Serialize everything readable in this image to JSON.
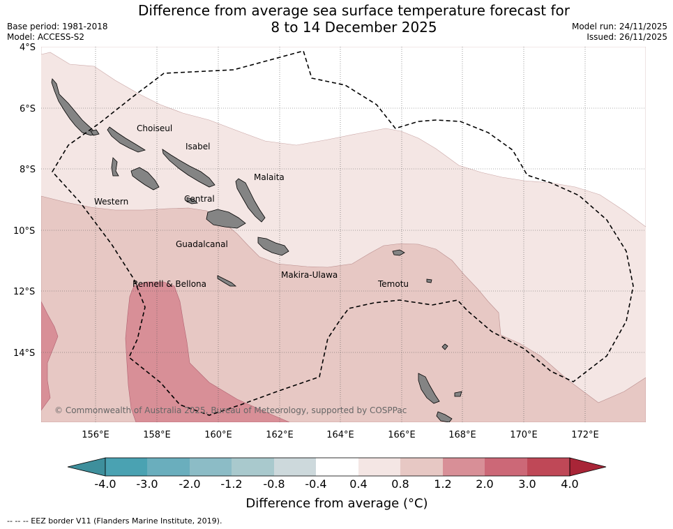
{
  "meta": {
    "base_period": "Base period: 1981-2018",
    "model": "Model: ACCESS-S2",
    "model_run": "Model run: 24/11/2025",
    "issued": "Issued: 26/11/2025"
  },
  "title": {
    "line1": "Difference from average sea surface temperature forecast for",
    "line2": "8 to 14 December 2025"
  },
  "map": {
    "lat_labels": [
      "4°S",
      "6°S",
      "8°S",
      "10°S",
      "12°S",
      "14°S"
    ],
    "lon_labels": [
      "156°E",
      "158°E",
      "160°E",
      "162°E",
      "164°E",
      "166°E",
      "168°E",
      "170°E",
      "172°E"
    ],
    "regions": [
      "Choiseul",
      "Isabel",
      "Malaita",
      "Western",
      "Central",
      "Guadalcanal",
      "Makira-Ulawa",
      "Rennell & Bellona",
      "Temotu"
    ],
    "copyright": "© Commonwealth of Australia 2025, Bureau of Meteorology, supported by COSPPac",
    "colors": {
      "band_0_4_0_8": "#f4e6e4",
      "band_0_8_1_2": "#e7c8c4",
      "band_1_2_2_0": "#d88f97",
      "land": "#848484",
      "eez": "#000000"
    }
  },
  "colorbar": {
    "ticks": [
      "-4.0",
      "-3.0",
      "-2.0",
      "-1.2",
      "-0.8",
      "-0.4",
      "0.4",
      "0.8",
      "1.2",
      "2.0",
      "3.0",
      "4.0"
    ],
    "colors": [
      "#3e8f9c",
      "#4aa2b2",
      "#6aaebd",
      "#8cbcc6",
      "#a9c9cd",
      "#cdd9dc",
      "#ffffff",
      "#f4e6e4",
      "#e7c8c4",
      "#d88f97",
      "#cc6877",
      "#bf4857",
      "#a82537"
    ],
    "title": "Difference from average (°C)"
  },
  "footnote": "--  --  -- EEZ border V11 (Flanders Marine Institute, 2019)."
}
